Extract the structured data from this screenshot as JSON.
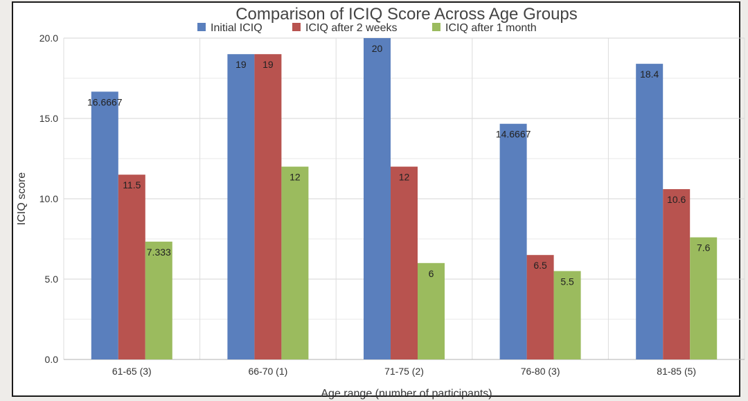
{
  "chart_data": {
    "type": "bar",
    "title": "Comparison of ICIQ Score Across Age Groups",
    "xlabel": "Age range (number of participants)",
    "ylabel": "ICIQ score",
    "categories": [
      "61-65 (3)",
      "66-70 (1)",
      "71-75 (2)",
      "76-80 (3)",
      "81-85 (5)"
    ],
    "ylim": [
      0,
      20
    ],
    "yticks": [
      0,
      5,
      10,
      15,
      20
    ],
    "ytick_labels": [
      "0.0",
      "5.0",
      "10.0",
      "15.0",
      "20.0"
    ],
    "grid": true,
    "legend_position": "top",
    "series": [
      {
        "name": "Initial ICIQ",
        "color": "#5a7fbd",
        "values": [
          16.6667,
          19,
          20,
          14.6667,
          18.4
        ],
        "labels": [
          "16.6667",
          "19",
          "20",
          "14.6667",
          "18.4"
        ]
      },
      {
        "name": "ICIQ after 2 weeks",
        "color": "#b8534f",
        "values": [
          11.5,
          19,
          12,
          6.5,
          10.6
        ],
        "labels": [
          "11.5",
          "19",
          "12",
          "6.5",
          "10.6"
        ]
      },
      {
        "name": "ICIQ after 1 month",
        "color": "#9bbb5e",
        "values": [
          7.333,
          12,
          6,
          5.5,
          7.6
        ],
        "labels": [
          "7.333",
          "12",
          "6",
          "5.5",
          "7.6"
        ]
      }
    ]
  }
}
